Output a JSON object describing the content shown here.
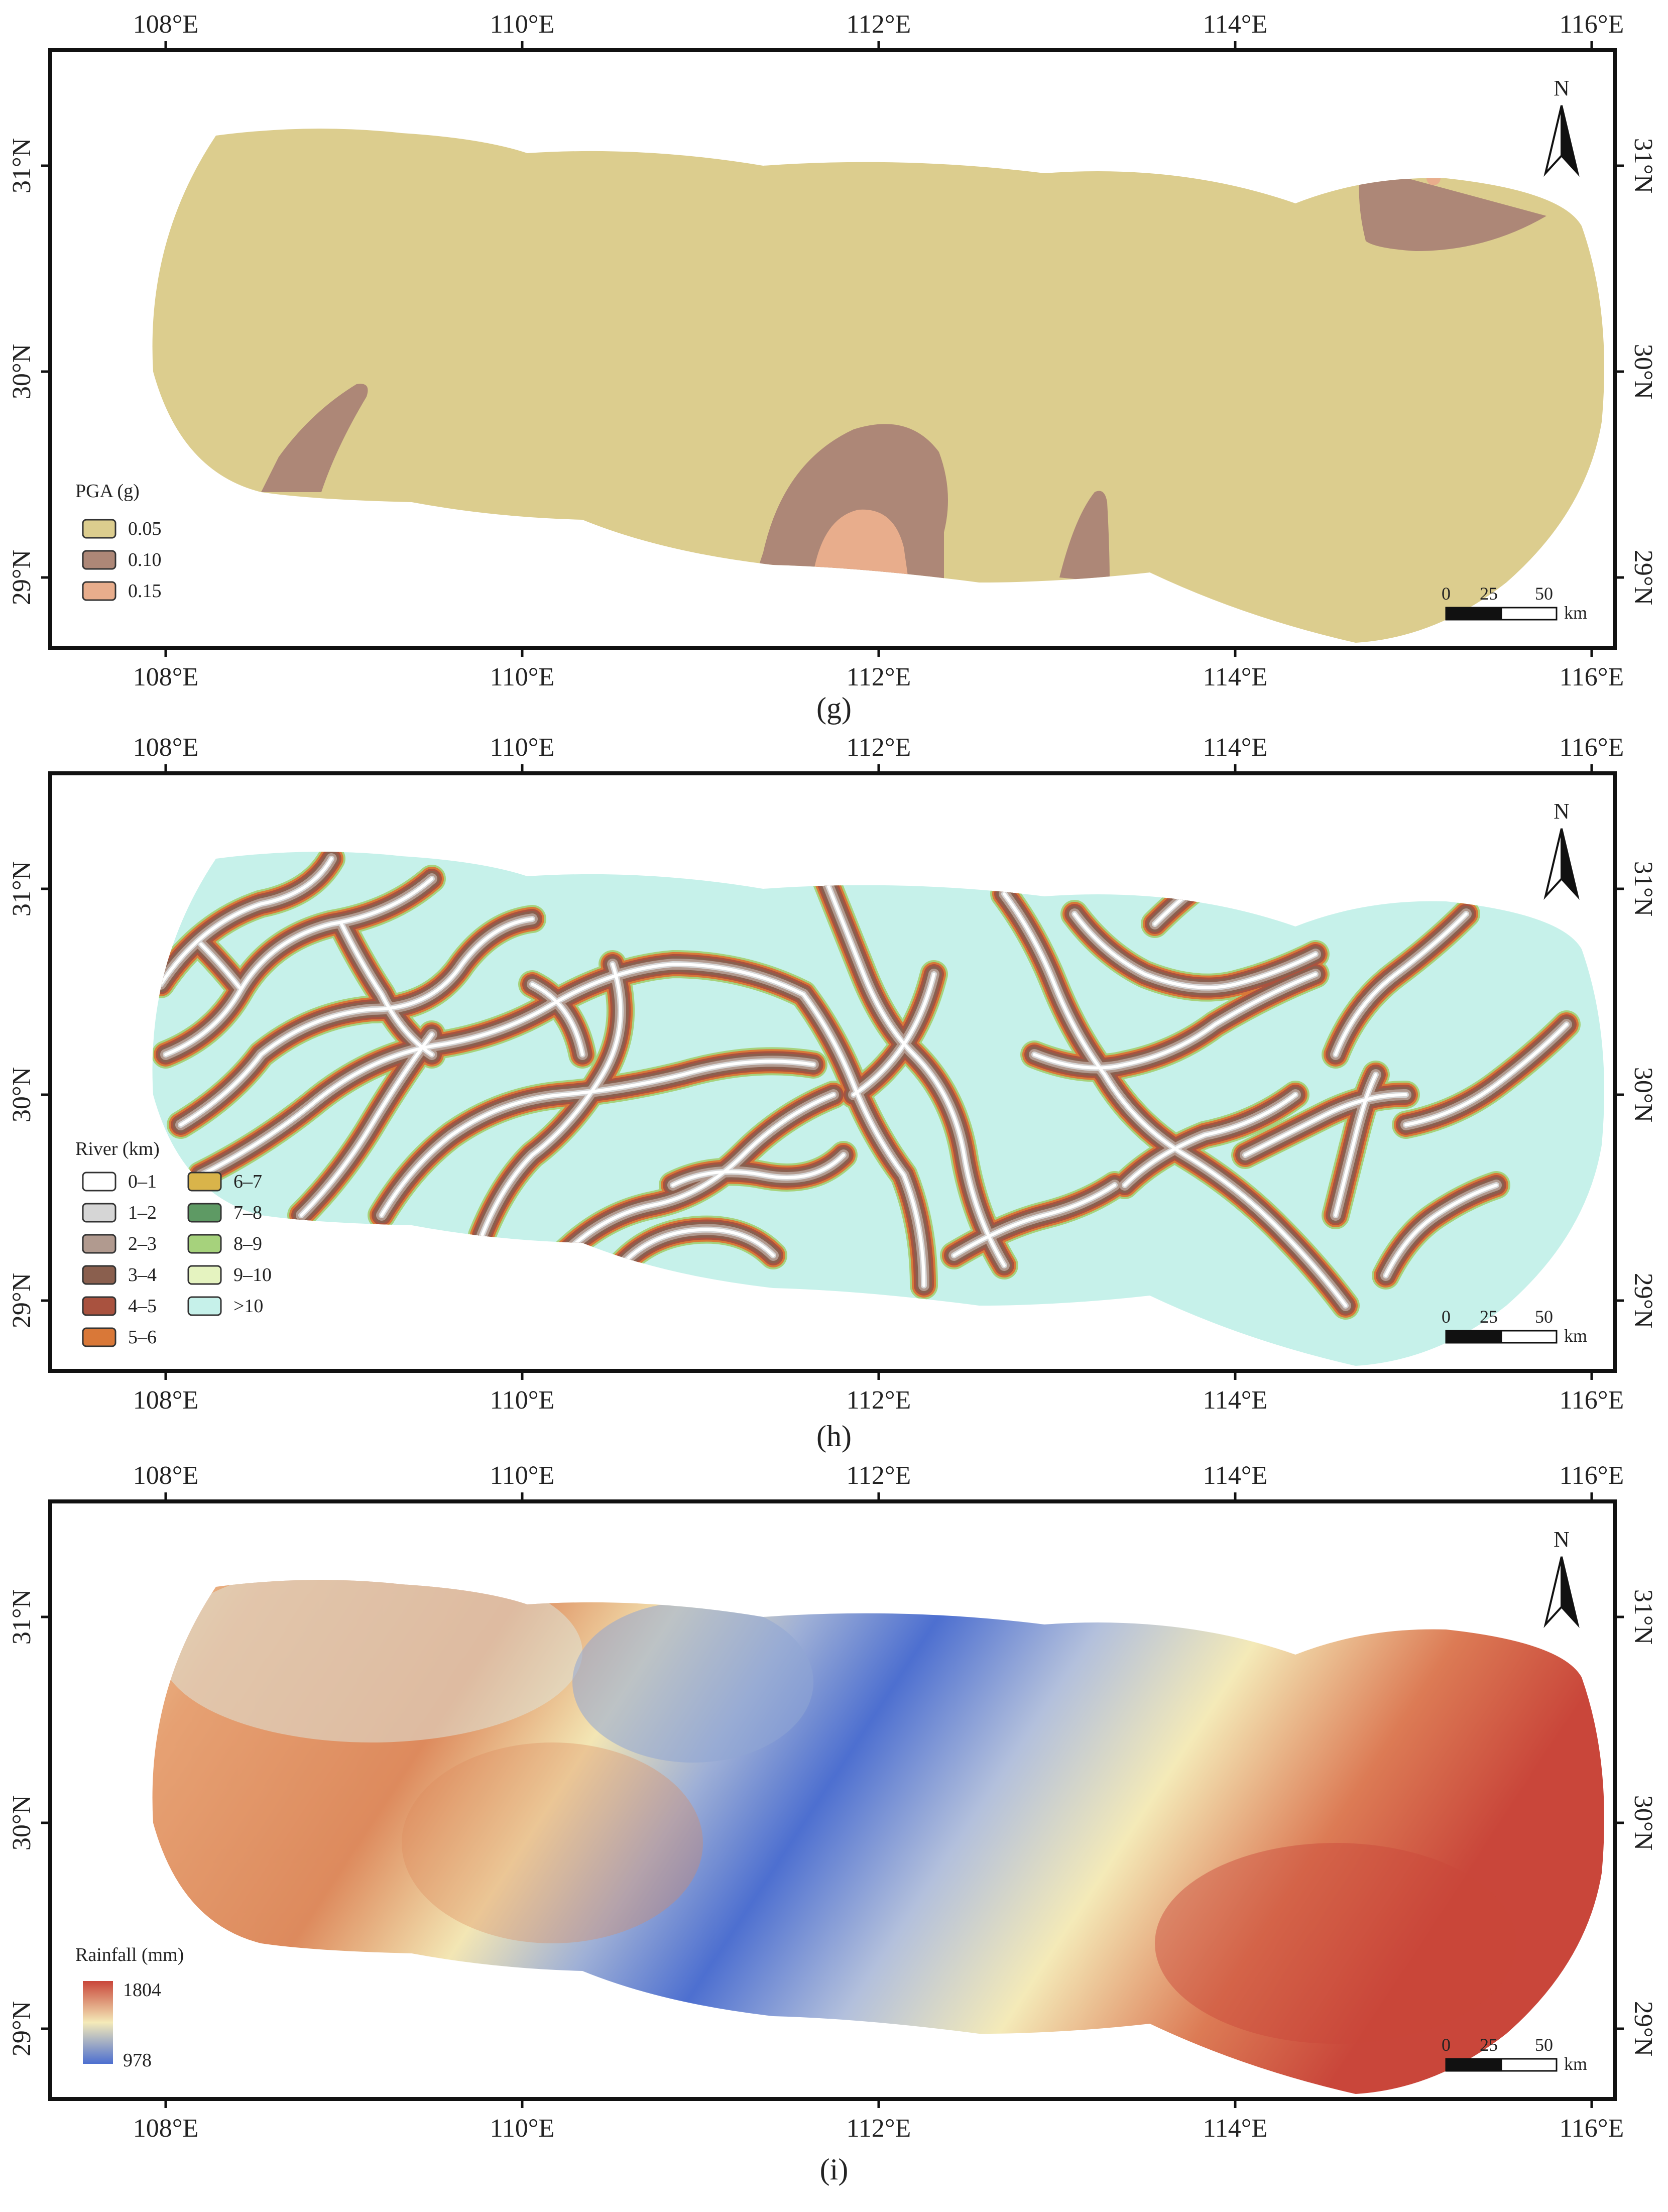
{
  "panels": [
    {
      "id": "g",
      "caption_letter": "g",
      "lon_ticks": [
        "108°E",
        "110°E",
        "112°E",
        "114°E",
        "116°E"
      ],
      "lat_ticks": [
        "31°N",
        "30°N",
        "29°N"
      ],
      "north_label": "N",
      "scale": {
        "labels": [
          "0",
          "25",
          "50"
        ],
        "unit": "km"
      },
      "legend": {
        "title": "PGA (g)",
        "items": [
          {
            "label": "0.05",
            "color": "#dccd8e"
          },
          {
            "label": "0.10",
            "color": "#ad8777"
          },
          {
            "label": "0.15",
            "color": "#e8ad8c"
          }
        ]
      }
    },
    {
      "id": "h",
      "caption_letter": "h",
      "lon_ticks": [
        "108°E",
        "110°E",
        "112°E",
        "114°E",
        "116°E"
      ],
      "lat_ticks": [
        "31°N",
        "30°N",
        "29°N"
      ],
      "north_label": "N",
      "scale": {
        "labels": [
          "0",
          "25",
          "50"
        ],
        "unit": "km"
      },
      "legend": {
        "title": "River (km)",
        "items": [
          {
            "label": "0–1",
            "color": "#ffffff"
          },
          {
            "label": "1–2",
            "color": "#d6d6d6"
          },
          {
            "label": "2–3",
            "color": "#b19a8f"
          },
          {
            "label": "3–4",
            "color": "#8a5f4e"
          },
          {
            "label": "4–5",
            "color": "#a9523f"
          },
          {
            "label": "5–6",
            "color": "#d97838"
          },
          {
            "label": "6–7",
            "color": "#d9b44a"
          },
          {
            "label": "7–8",
            "color": "#5e9a64"
          },
          {
            "label": "8–9",
            "color": "#a6d27c"
          },
          {
            "label": "9–10",
            "color": "#e5f3c0"
          },
          {
            "label": ">10",
            "color": "#c6f1ea"
          }
        ]
      }
    },
    {
      "id": "i",
      "caption_letter": "i",
      "lon_ticks": [
        "108°E",
        "110°E",
        "112°E",
        "114°E",
        "116°E"
      ],
      "lat_ticks": [
        "31°N",
        "30°N",
        "29°N"
      ],
      "north_label": "N",
      "scale": {
        "labels": [
          "0",
          "25",
          "50"
        ],
        "unit": "km"
      },
      "legend": {
        "title": "Rainfall (mm)",
        "max": "1804",
        "min": "978",
        "colors": {
          "high": "#c9463a",
          "mid": "#f4eab8",
          "low": "#4d6fd0"
        }
      }
    }
  ]
}
